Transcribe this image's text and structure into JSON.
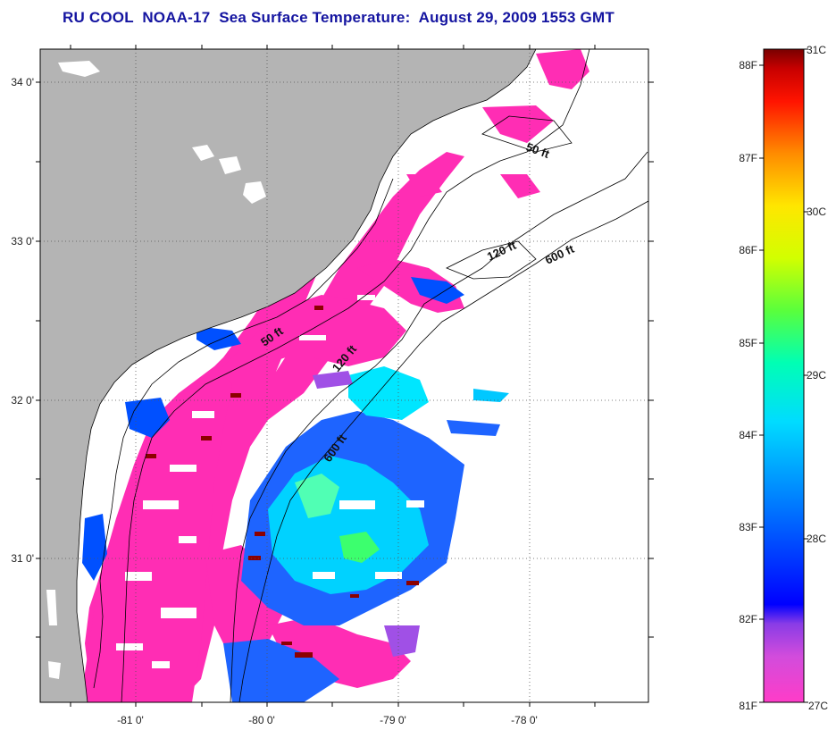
{
  "title": "RU COOL  NOAA-17  Sea Surface Temperature:  August 29, 2009 1553 GMT",
  "map": {
    "lat_ticks": [
      {
        "label": "34 0'",
        "lat": 34
      },
      {
        "label": "33 0'",
        "lat": 33
      },
      {
        "label": "32 0'",
        "lat": 32
      },
      {
        "label": "31 0'",
        "lat": 31
      }
    ],
    "lon_ticks": [
      {
        "label": "-81 0'",
        "lon": -81
      },
      {
        "label": "-80 0'",
        "lon": -80
      },
      {
        "label": "-79 0'",
        "lon": -79
      },
      {
        "label": "-78 0'",
        "lon": -78
      }
    ],
    "lat_range": [
      30.05,
      34.2
    ],
    "lon_range": [
      -81.68,
      -77.18
    ],
    "contour_labels": [
      "50 ft",
      "120 ft",
      "600 ft",
      "50 ft",
      "120 ft",
      "600 ft"
    ],
    "colors": {
      "land": "#b4b4b4",
      "ocean_cloud": "#ffffff",
      "sst_low": "#ff2db4",
      "coastline": "#000000"
    }
  },
  "colorbar": {
    "fahrenheit_labels": [
      "88F",
      "87F",
      "86F",
      "85F",
      "84F",
      "83F",
      "82F",
      "81F"
    ],
    "celsius_labels": [
      "31C",
      "30C",
      "29C",
      "28C",
      "27C"
    ],
    "range_c": [
      27,
      31
    ],
    "range_f": [
      81,
      88
    ]
  }
}
